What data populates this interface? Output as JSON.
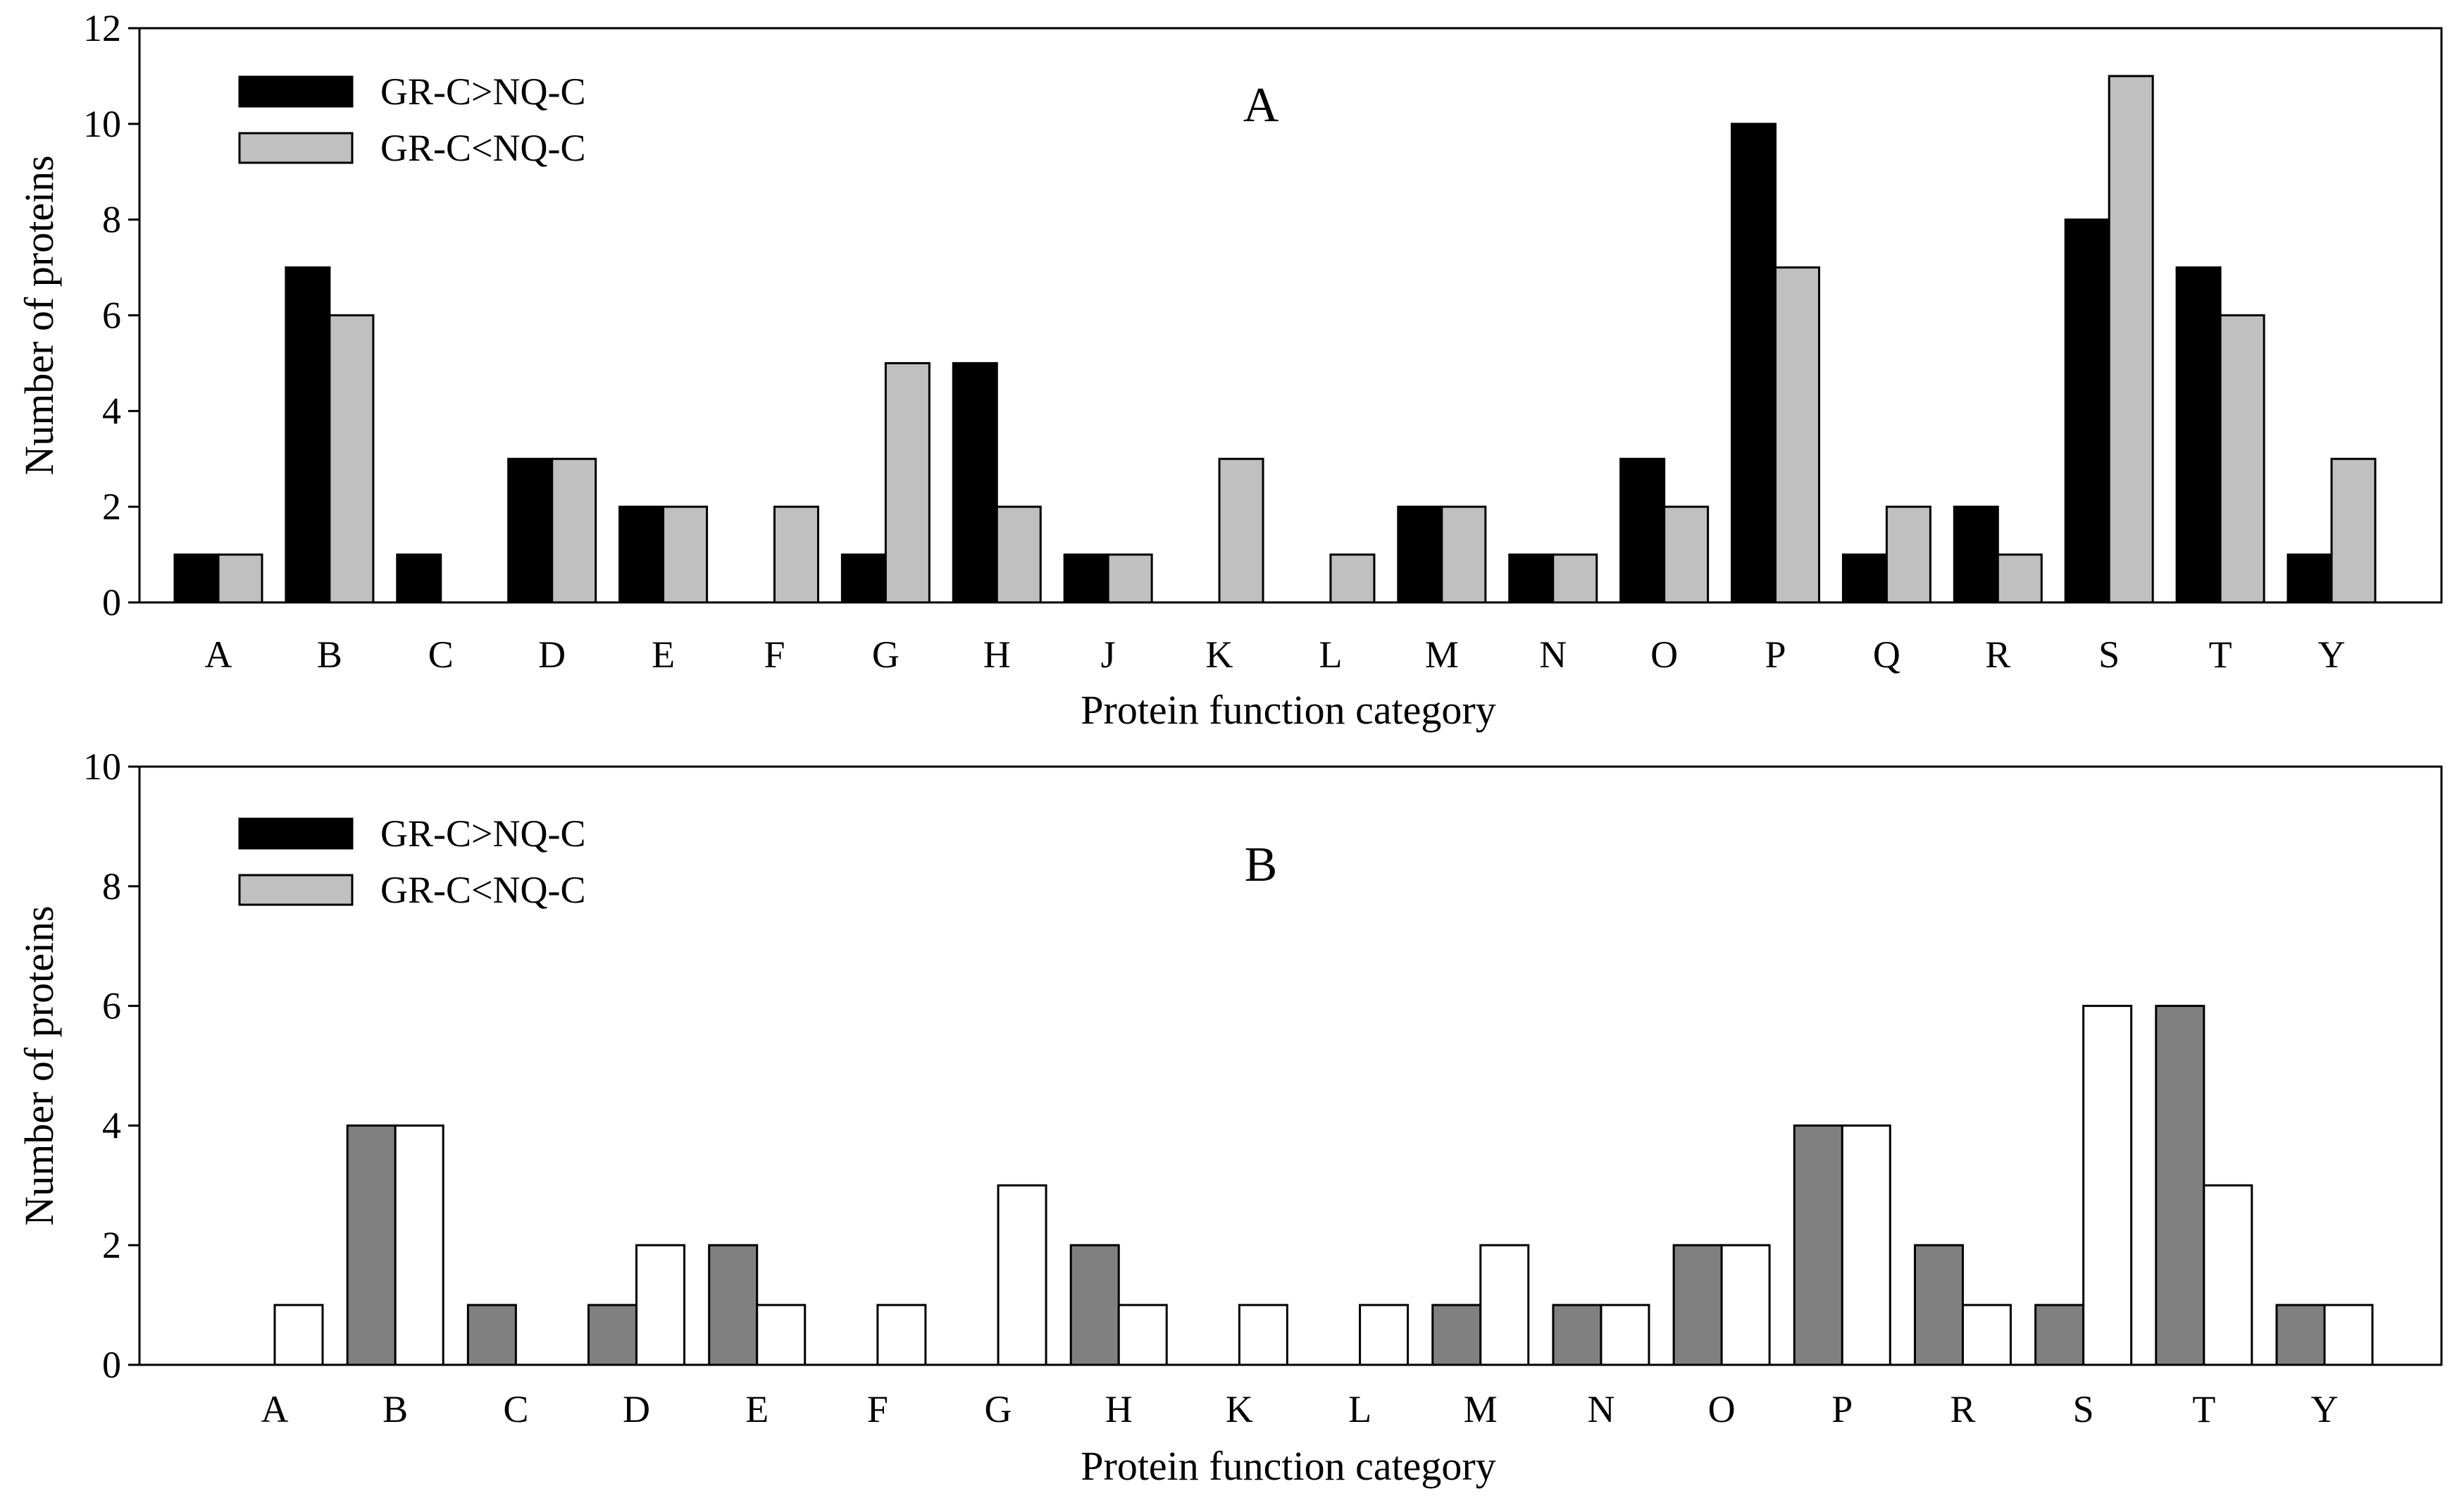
{
  "chart_data": [
    {
      "type": "bar",
      "panel_label": "A",
      "xlabel": "Protein function category",
      "ylabel": "Number of proteins",
      "ylim": [
        0,
        12
      ],
      "yticks": [
        0,
        2,
        4,
        6,
        8,
        10,
        12
      ],
      "legend_position": "top-left",
      "categories": [
        "A",
        "B",
        "C",
        "D",
        "E",
        "F",
        "G",
        "H",
        "J",
        "K",
        "L",
        "M",
        "N",
        "O",
        "P",
        "Q",
        "R",
        "S",
        "T",
        "Y"
      ],
      "series": [
        {
          "name": "GR-C>NQ-C",
          "color": "#000000",
          "values": [
            1,
            7,
            1,
            3,
            2,
            0,
            1,
            5,
            1,
            0,
            0,
            2,
            1,
            3,
            10,
            1,
            2,
            8,
            7,
            1
          ]
        },
        {
          "name": "GR-C<NQ-C",
          "color": "#c0c0c0",
          "values": [
            1,
            6,
            0,
            3,
            2,
            2,
            5,
            2,
            1,
            3,
            1,
            2,
            1,
            2,
            7,
            2,
            1,
            11,
            6,
            3
          ]
        }
      ]
    },
    {
      "type": "bar",
      "panel_label": "B",
      "xlabel": "Protein function category",
      "ylabel": "Number of proteins",
      "ylim": [
        0,
        10
      ],
      "yticks": [
        0,
        2,
        4,
        6,
        8,
        10
      ],
      "legend_position": "top-left",
      "legend_swatches": [
        "#000000",
        "#c0c0c0"
      ],
      "categories": [
        "A",
        "B",
        "C",
        "D",
        "E",
        "F",
        "G",
        "H",
        "K",
        "L",
        "M",
        "N",
        "O",
        "P",
        "R",
        "S",
        "T",
        "Y"
      ],
      "series": [
        {
          "name": "GR-C>NQ-C",
          "color": "#808080",
          "values": [
            0,
            4,
            1,
            1,
            2,
            0,
            0,
            2,
            0,
            0,
            1,
            1,
            2,
            4,
            2,
            1,
            6,
            1
          ]
        },
        {
          "name": "GR-C<NQ-C",
          "color": "#ffffff",
          "values": [
            1,
            4,
            0,
            2,
            1,
            1,
            3,
            1,
            1,
            1,
            2,
            1,
            2,
            4,
            1,
            6,
            3,
            1
          ]
        }
      ]
    }
  ]
}
